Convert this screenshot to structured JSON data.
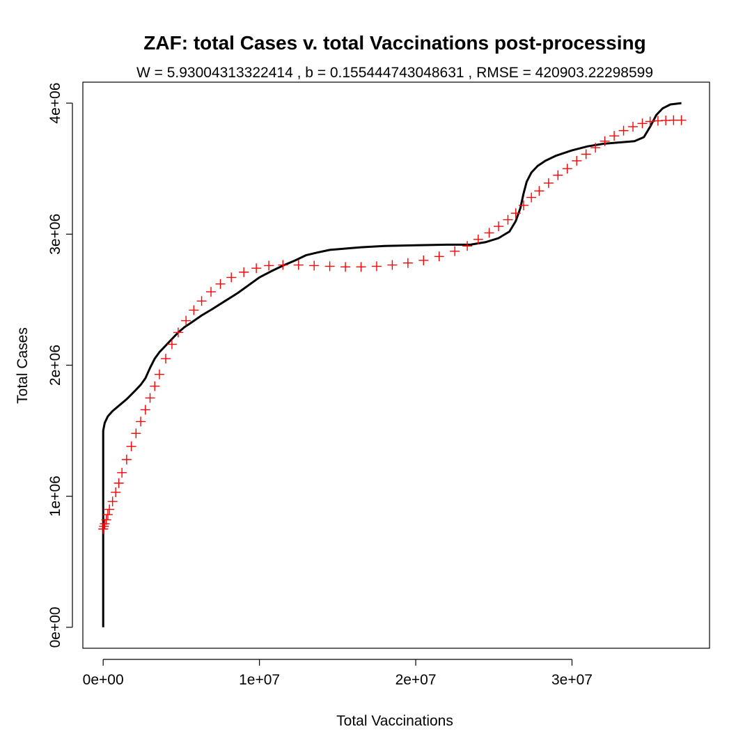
{
  "chart_data": {
    "type": "line",
    "title": "ZAF: total Cases v. total Vaccinations post-processing",
    "subtitle": "W = 5.93004313322414 , b = 0.155444743048631 , RMSE = 420903.22298599",
    "xlabel": "Total Vaccinations",
    "ylabel": "Total Cases",
    "xlim": [
      -1300000,
      38800000
    ],
    "ylim": [
      -160000,
      4160000
    ],
    "x_ticks": [
      {
        "value": 0,
        "label": "0e+00"
      },
      {
        "value": 10000000,
        "label": "1e+07"
      },
      {
        "value": 20000000,
        "label": "2e+07"
      },
      {
        "value": 30000000,
        "label": "3e+07"
      }
    ],
    "y_ticks": [
      {
        "value": 0,
        "label": "0e+00"
      },
      {
        "value": 1000000,
        "label": "1e+06"
      },
      {
        "value": 2000000,
        "label": "2e+06"
      },
      {
        "value": 3000000,
        "label": "3e+06"
      },
      {
        "value": 4000000,
        "label": "4e+06"
      }
    ],
    "grid": false,
    "series": [
      {
        "style": "line",
        "color": "#000000",
        "x": [
          0,
          0,
          0,
          100000,
          300000,
          600000,
          1000000,
          1500000,
          2000000,
          2400000,
          2700000,
          3000000,
          3300000,
          3600000,
          4000000,
          4400000,
          4800000,
          5200000,
          5700000,
          6300000,
          7000000,
          7800000,
          8600000,
          9300000,
          10000000,
          10800000,
          11500000,
          12300000,
          13000000,
          13700000,
          14500000,
          15500000,
          16500000,
          18000000,
          20000000,
          22000000,
          23500000,
          24500000,
          25300000,
          26000000,
          26400000,
          26700000,
          26900000,
          27100000,
          27400000,
          27800000,
          28300000,
          29000000,
          30000000,
          31000000,
          32000000,
          33000000,
          34000000,
          34600000,
          35000000,
          35400000,
          35800000,
          36300000,
          37000000
        ],
        "y": [
          0,
          1000000,
          1500000,
          1560000,
          1610000,
          1650000,
          1690000,
          1740000,
          1800000,
          1850000,
          1900000,
          1980000,
          2050000,
          2100000,
          2150000,
          2200000,
          2250000,
          2290000,
          2330000,
          2380000,
          2430000,
          2490000,
          2550000,
          2610000,
          2670000,
          2720000,
          2760000,
          2800000,
          2840000,
          2860000,
          2880000,
          2890000,
          2900000,
          2910000,
          2915000,
          2920000,
          2920000,
          2940000,
          2970000,
          3020000,
          3100000,
          3200000,
          3310000,
          3400000,
          3470000,
          3520000,
          3560000,
          3600000,
          3640000,
          3670000,
          3690000,
          3700000,
          3710000,
          3740000,
          3820000,
          3910000,
          3960000,
          3990000,
          4000000
        ]
      },
      {
        "style": "points",
        "marker": "+",
        "color": "#ff0000",
        "x": [
          0,
          50000,
          100000,
          200000,
          300000,
          400000,
          600000,
          800000,
          1000000,
          1200000,
          1500000,
          1800000,
          2100000,
          2400000,
          2700000,
          3000000,
          3300000,
          3600000,
          4000000,
          4400000,
          4800000,
          5300000,
          5800000,
          6300000,
          6900000,
          7500000,
          8200000,
          9000000,
          9800000,
          10600000,
          11500000,
          12500000,
          13500000,
          14500000,
          15500000,
          16500000,
          17500000,
          18500000,
          19500000,
          20500000,
          21500000,
          22500000,
          23300000,
          24000000,
          24700000,
          25300000,
          25900000,
          26400000,
          26900000,
          27400000,
          27900000,
          28500000,
          29100000,
          29700000,
          30300000,
          30900000,
          31500000,
          32100000,
          32700000,
          33300000,
          33900000,
          34500000,
          35000000,
          35500000,
          36000000,
          36500000,
          37000000
        ],
        "y": [
          750000,
          770000,
          790000,
          820000,
          860000,
          900000,
          960000,
          1030000,
          1100000,
          1180000,
          1280000,
          1380000,
          1480000,
          1570000,
          1660000,
          1750000,
          1840000,
          1930000,
          2050000,
          2160000,
          2250000,
          2340000,
          2420000,
          2490000,
          2560000,
          2620000,
          2670000,
          2710000,
          2740000,
          2760000,
          2765000,
          2765000,
          2760000,
          2755000,
          2750000,
          2750000,
          2755000,
          2765000,
          2780000,
          2800000,
          2830000,
          2870000,
          2910000,
          2960000,
          3010000,
          3060000,
          3110000,
          3160000,
          3220000,
          3280000,
          3330000,
          3390000,
          3450000,
          3500000,
          3560000,
          3610000,
          3660000,
          3710000,
          3750000,
          3790000,
          3820000,
          3845000,
          3860000,
          3865000,
          3868000,
          3870000,
          3870000
        ]
      }
    ]
  }
}
